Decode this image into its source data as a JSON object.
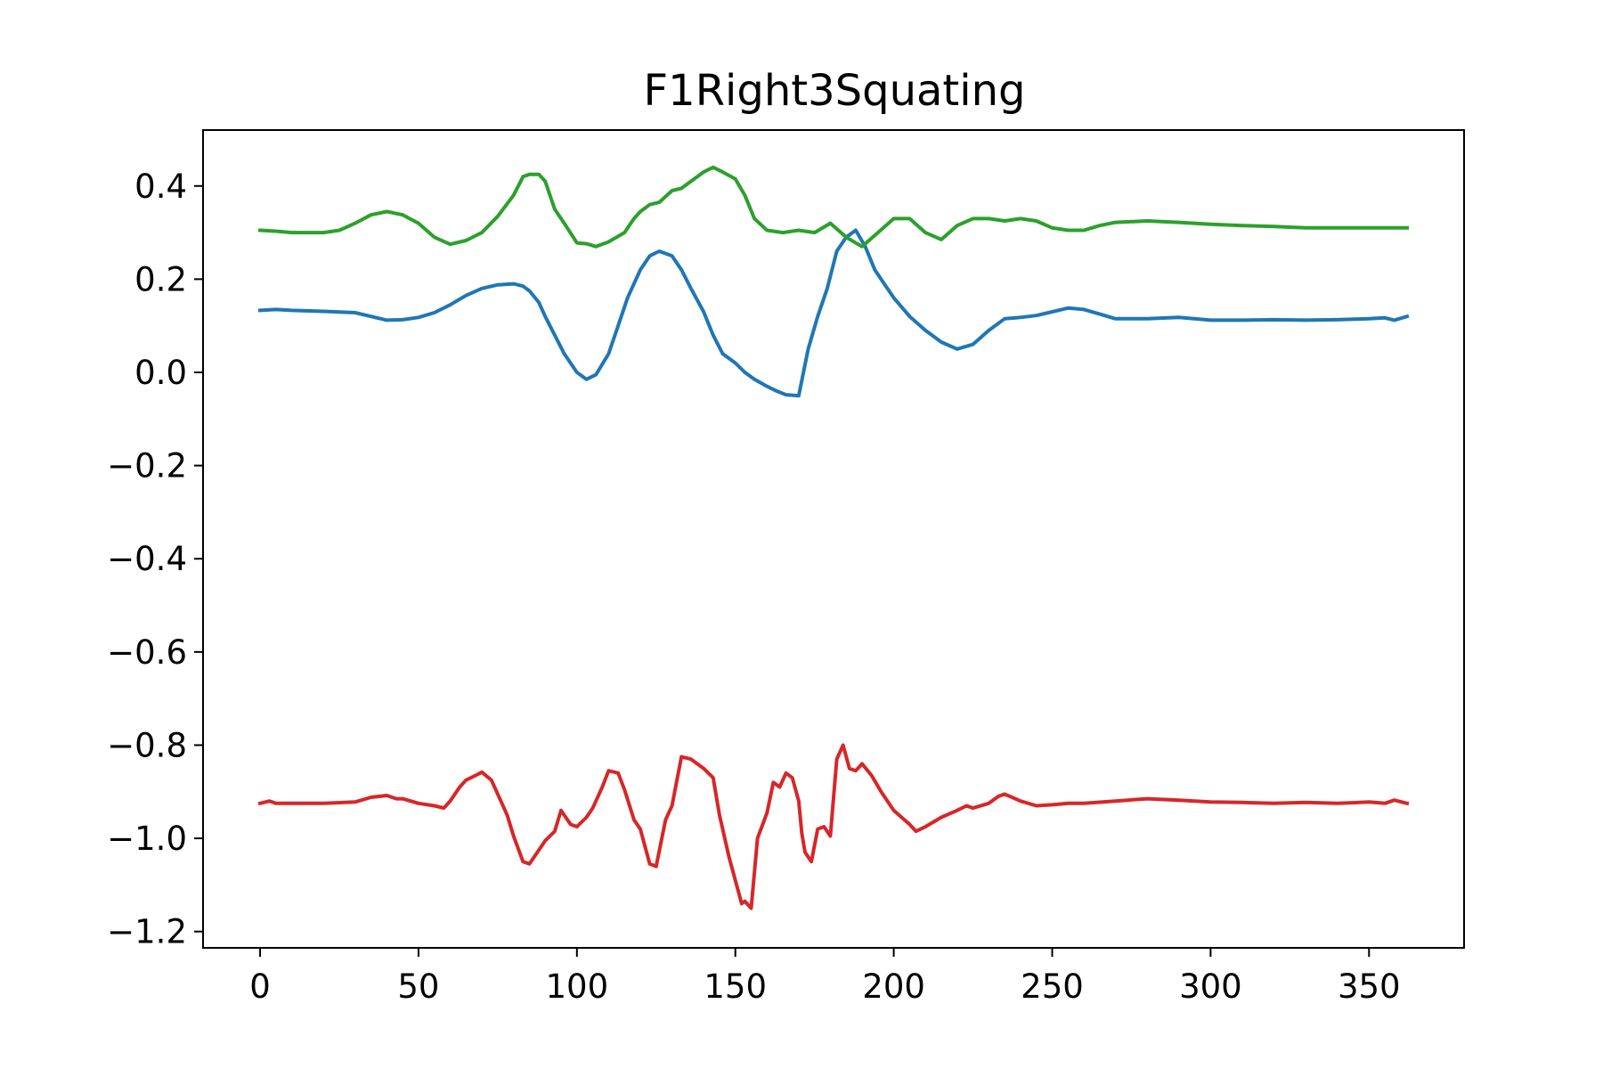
{
  "chart_data": {
    "type": "line",
    "title": "F1Right3Squating",
    "xlabel": "",
    "ylabel": "",
    "xlim": [
      -18,
      380
    ],
    "ylim": [
      -1.235,
      0.52
    ],
    "xticks": [
      0,
      50,
      100,
      150,
      200,
      250,
      300,
      350
    ],
    "xtick_labels": [
      "0",
      "50",
      "100",
      "150",
      "200",
      "250",
      "300",
      "350"
    ],
    "yticks": [
      0.4,
      0.2,
      0.0,
      -0.2,
      -0.4,
      -0.6,
      -0.8,
      -1.0,
      -1.2
    ],
    "ytick_labels": [
      "0.4",
      "0.2",
      "0.0",
      "−0.2",
      "−0.4",
      "−0.6",
      "−0.8",
      "−1.0",
      "−1.2"
    ],
    "grid": false,
    "legend": "none",
    "series": [
      {
        "color": "#1f77b4",
        "x": [
          0,
          5,
          10,
          20,
          30,
          35,
          40,
          45,
          50,
          55,
          60,
          65,
          70,
          75,
          80,
          83,
          85,
          88,
          90,
          93,
          96,
          100,
          103,
          106,
          110,
          113,
          116,
          120,
          123,
          126,
          130,
          133,
          136,
          140,
          143,
          146,
          150,
          153,
          156,
          160,
          163,
          166,
          170,
          173,
          176,
          179,
          182,
          185,
          188,
          191,
          194,
          197,
          200,
          205,
          210,
          215,
          220,
          225,
          230,
          235,
          240,
          245,
          250,
          255,
          260,
          265,
          270,
          280,
          290,
          300,
          310,
          320,
          330,
          340,
          350,
          355,
          358,
          362
        ],
        "y": [
          0.133,
          0.135,
          0.133,
          0.131,
          0.128,
          0.12,
          0.112,
          0.113,
          0.118,
          0.128,
          0.145,
          0.165,
          0.18,
          0.188,
          0.19,
          0.185,
          0.175,
          0.15,
          0.12,
          0.08,
          0.04,
          0.0,
          -0.015,
          -0.005,
          0.04,
          0.1,
          0.16,
          0.22,
          0.25,
          0.26,
          0.25,
          0.22,
          0.18,
          0.13,
          0.08,
          0.04,
          0.02,
          0.0,
          -0.015,
          -0.03,
          -0.04,
          -0.048,
          -0.05,
          0.05,
          0.12,
          0.18,
          0.26,
          0.29,
          0.305,
          0.27,
          0.22,
          0.19,
          0.16,
          0.12,
          0.09,
          0.065,
          0.05,
          0.06,
          0.09,
          0.115,
          0.118,
          0.122,
          0.13,
          0.138,
          0.135,
          0.125,
          0.115,
          0.115,
          0.118,
          0.112,
          0.112,
          0.113,
          0.112,
          0.113,
          0.115,
          0.117,
          0.112,
          0.12
        ]
      },
      {
        "color": "#2ca02c",
        "x": [
          0,
          5,
          10,
          20,
          25,
          30,
          35,
          40,
          45,
          50,
          55,
          60,
          65,
          70,
          75,
          80,
          83,
          85,
          88,
          90,
          93,
          96,
          100,
          103,
          106,
          110,
          115,
          118,
          120,
          123,
          126,
          130,
          133,
          136,
          140,
          143,
          146,
          150,
          153,
          156,
          160,
          165,
          170,
          175,
          180,
          185,
          190,
          195,
          200,
          205,
          210,
          215,
          220,
          225,
          230,
          235,
          240,
          245,
          250,
          255,
          260,
          265,
          270,
          280,
          290,
          300,
          310,
          320,
          330,
          340,
          350,
          355,
          358,
          362
        ],
        "y": [
          0.305,
          0.303,
          0.3,
          0.3,
          0.305,
          0.32,
          0.338,
          0.345,
          0.338,
          0.32,
          0.29,
          0.275,
          0.283,
          0.3,
          0.335,
          0.38,
          0.42,
          0.425,
          0.425,
          0.41,
          0.35,
          0.32,
          0.278,
          0.276,
          0.27,
          0.28,
          0.3,
          0.33,
          0.345,
          0.36,
          0.365,
          0.39,
          0.395,
          0.41,
          0.43,
          0.44,
          0.43,
          0.415,
          0.38,
          0.33,
          0.305,
          0.3,
          0.305,
          0.3,
          0.32,
          0.29,
          0.27,
          0.3,
          0.33,
          0.33,
          0.3,
          0.285,
          0.315,
          0.33,
          0.33,
          0.325,
          0.33,
          0.325,
          0.31,
          0.305,
          0.305,
          0.315,
          0.322,
          0.325,
          0.322,
          0.318,
          0.315,
          0.313,
          0.31,
          0.31,
          0.31,
          0.31,
          0.31,
          0.31
        ]
      },
      {
        "color": "#d62728",
        "x": [
          0,
          3,
          5,
          10,
          20,
          30,
          35,
          40,
          43,
          45,
          50,
          55,
          58,
          60,
          63,
          65,
          68,
          70,
          73,
          75,
          78,
          80,
          83,
          85,
          88,
          90,
          93,
          95,
          98,
          100,
          103,
          105,
          108,
          110,
          113,
          115,
          118,
          120,
          123,
          125,
          128,
          130,
          133,
          136,
          140,
          143,
          145,
          148,
          150,
          152,
          153,
          155,
          157,
          160,
          162,
          164,
          166,
          168,
          170,
          171,
          172,
          174,
          176,
          178,
          180,
          182,
          184,
          186,
          188,
          190,
          193,
          196,
          200,
          205,
          207,
          210,
          215,
          220,
          223,
          225,
          230,
          233,
          235,
          240,
          245,
          250,
          255,
          260,
          270,
          280,
          290,
          300,
          310,
          320,
          330,
          340,
          350,
          355,
          358,
          362
        ],
        "y": [
          -0.925,
          -0.92,
          -0.925,
          -0.925,
          -0.925,
          -0.922,
          -0.912,
          -0.908,
          -0.915,
          -0.915,
          -0.925,
          -0.93,
          -0.935,
          -0.92,
          -0.89,
          -0.875,
          -0.865,
          -0.858,
          -0.875,
          -0.905,
          -0.95,
          -0.995,
          -1.05,
          -1.055,
          -1.025,
          -1.005,
          -0.985,
          -0.94,
          -0.97,
          -0.975,
          -0.955,
          -0.935,
          -0.89,
          -0.855,
          -0.86,
          -0.895,
          -0.96,
          -0.98,
          -1.055,
          -1.06,
          -0.96,
          -0.93,
          -0.825,
          -0.83,
          -0.85,
          -0.87,
          -0.95,
          -1.04,
          -1.09,
          -1.14,
          -1.135,
          -1.15,
          -1.0,
          -0.945,
          -0.88,
          -0.89,
          -0.86,
          -0.87,
          -0.92,
          -0.99,
          -1.03,
          -1.05,
          -0.98,
          -0.975,
          -0.995,
          -0.83,
          -0.8,
          -0.85,
          -0.855,
          -0.84,
          -0.865,
          -0.9,
          -0.94,
          -0.97,
          -0.985,
          -0.975,
          -0.955,
          -0.94,
          -0.93,
          -0.935,
          -0.925,
          -0.91,
          -0.905,
          -0.92,
          -0.93,
          -0.928,
          -0.925,
          -0.925,
          -0.92,
          -0.915,
          -0.918,
          -0.922,
          -0.923,
          -0.925,
          -0.923,
          -0.925,
          -0.922,
          -0.925,
          -0.918,
          -0.925
        ]
      }
    ]
  }
}
